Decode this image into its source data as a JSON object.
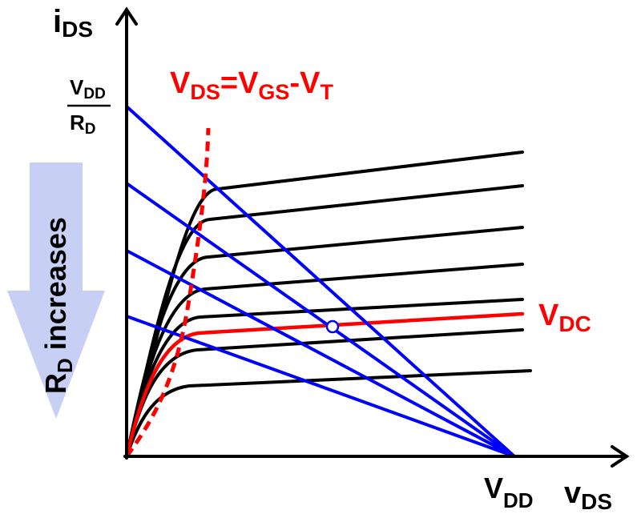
{
  "labels": {
    "y_axis": {
      "main": "i",
      "sub": "DS"
    },
    "x_axis": {
      "main": "v",
      "sub": "DS"
    },
    "vdd_axis": {
      "main": "V",
      "sub": "DD"
    },
    "fraction": {
      "num_main": "V",
      "num_sub": "DD",
      "den_main": "R",
      "den_sub": "D"
    },
    "boundary": {
      "v1": "V",
      "s1": "DS",
      "eq": "=V",
      "s2": "GS",
      "dash": "-V",
      "s3": "T"
    },
    "vdc": {
      "main": "V",
      "sub": "DC"
    },
    "arrow": {
      "r": "R",
      "sub": "D",
      "text": " increases"
    }
  },
  "colors": {
    "axis": "#000000",
    "curves": "#000000",
    "highlight": "#ff0000",
    "load_lines": "#0000ff",
    "arrow_fill": "#c7cff5",
    "q_point_fill": "#ffffff",
    "q_point_stroke": "#0000ff"
  }
}
